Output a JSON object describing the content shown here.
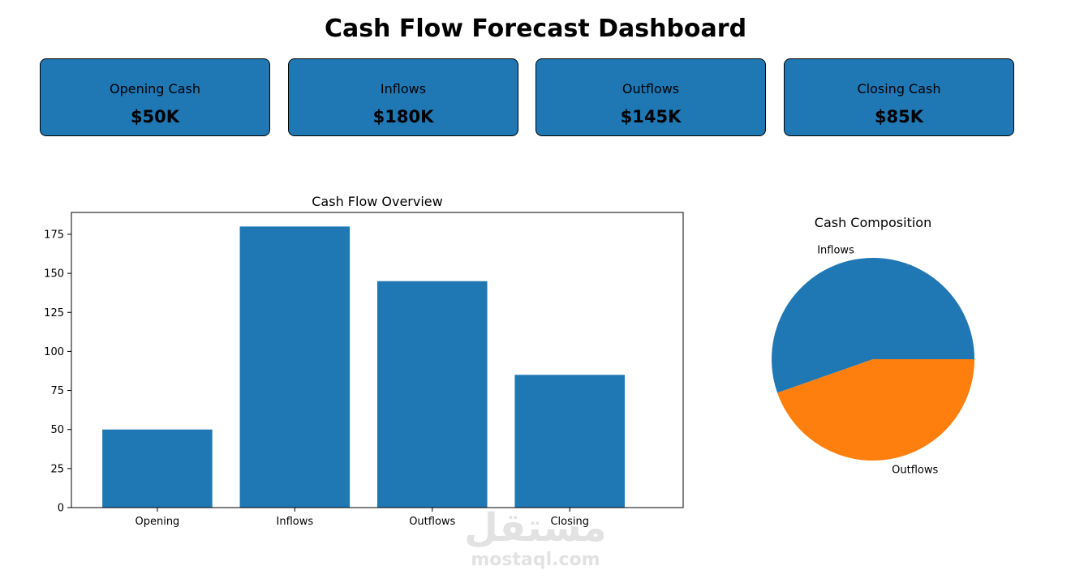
{
  "header": {
    "title": "Cash Flow Forecast Dashboard"
  },
  "kpis": [
    {
      "label": "Opening Cash",
      "value": "$50K"
    },
    {
      "label": "Inflows",
      "value": "$180K"
    },
    {
      "label": "Outflows",
      "value": "$145K"
    },
    {
      "label": "Closing Cash",
      "value": "$85K"
    }
  ],
  "colors": {
    "blue": "#1f77b4",
    "orange": "#ff7f0e"
  },
  "chart_data": [
    {
      "type": "bar",
      "title": "Cash Flow Overview",
      "categories": [
        "Opening",
        "Inflows",
        "Outflows",
        "Closing"
      ],
      "values": [
        50,
        180,
        145,
        85
      ],
      "xlabel": "",
      "ylabel": "",
      "ylim": [
        0,
        189
      ],
      "yticks": [
        0,
        25,
        50,
        75,
        100,
        125,
        150,
        175
      ],
      "grid": false,
      "color": "#1f77b4"
    },
    {
      "type": "pie",
      "title": "Cash Composition",
      "labels": [
        "Inflows",
        "Outflows"
      ],
      "values": [
        180,
        145
      ],
      "colors": [
        "#1f77b4",
        "#ff7f0e"
      ]
    }
  ],
  "watermark": {
    "brand": "مستقل",
    "site": "mostaql.com"
  }
}
